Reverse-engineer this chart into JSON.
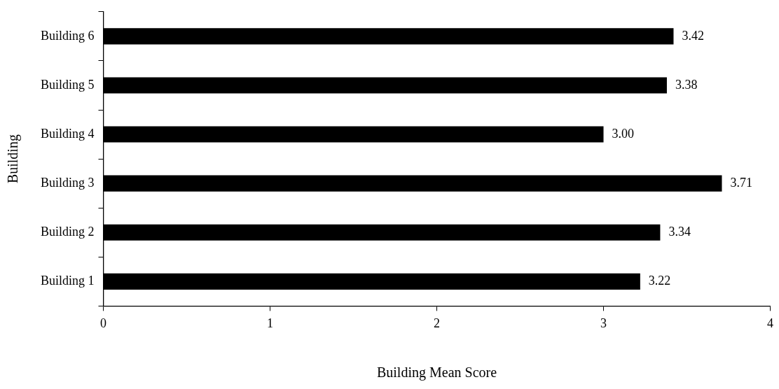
{
  "chart_data": {
    "type": "bar",
    "orientation": "horizontal",
    "xlabel": "Building Mean Score",
    "ylabel": "Building",
    "categories": [
      "Building 6",
      "Building 5",
      "Building 4",
      "Building 3",
      "Building 2",
      "Building 1"
    ],
    "values": [
      3.42,
      3.38,
      3.0,
      3.71,
      3.34,
      3.22
    ],
    "value_labels": [
      "3.42",
      "3.38",
      "3.00",
      "3.71",
      "3.34",
      "3.22"
    ],
    "color": "#000000",
    "xlim": [
      0,
      4
    ],
    "xticks": [
      0,
      1,
      2,
      3,
      4
    ],
    "grid": false,
    "legend": false
  }
}
